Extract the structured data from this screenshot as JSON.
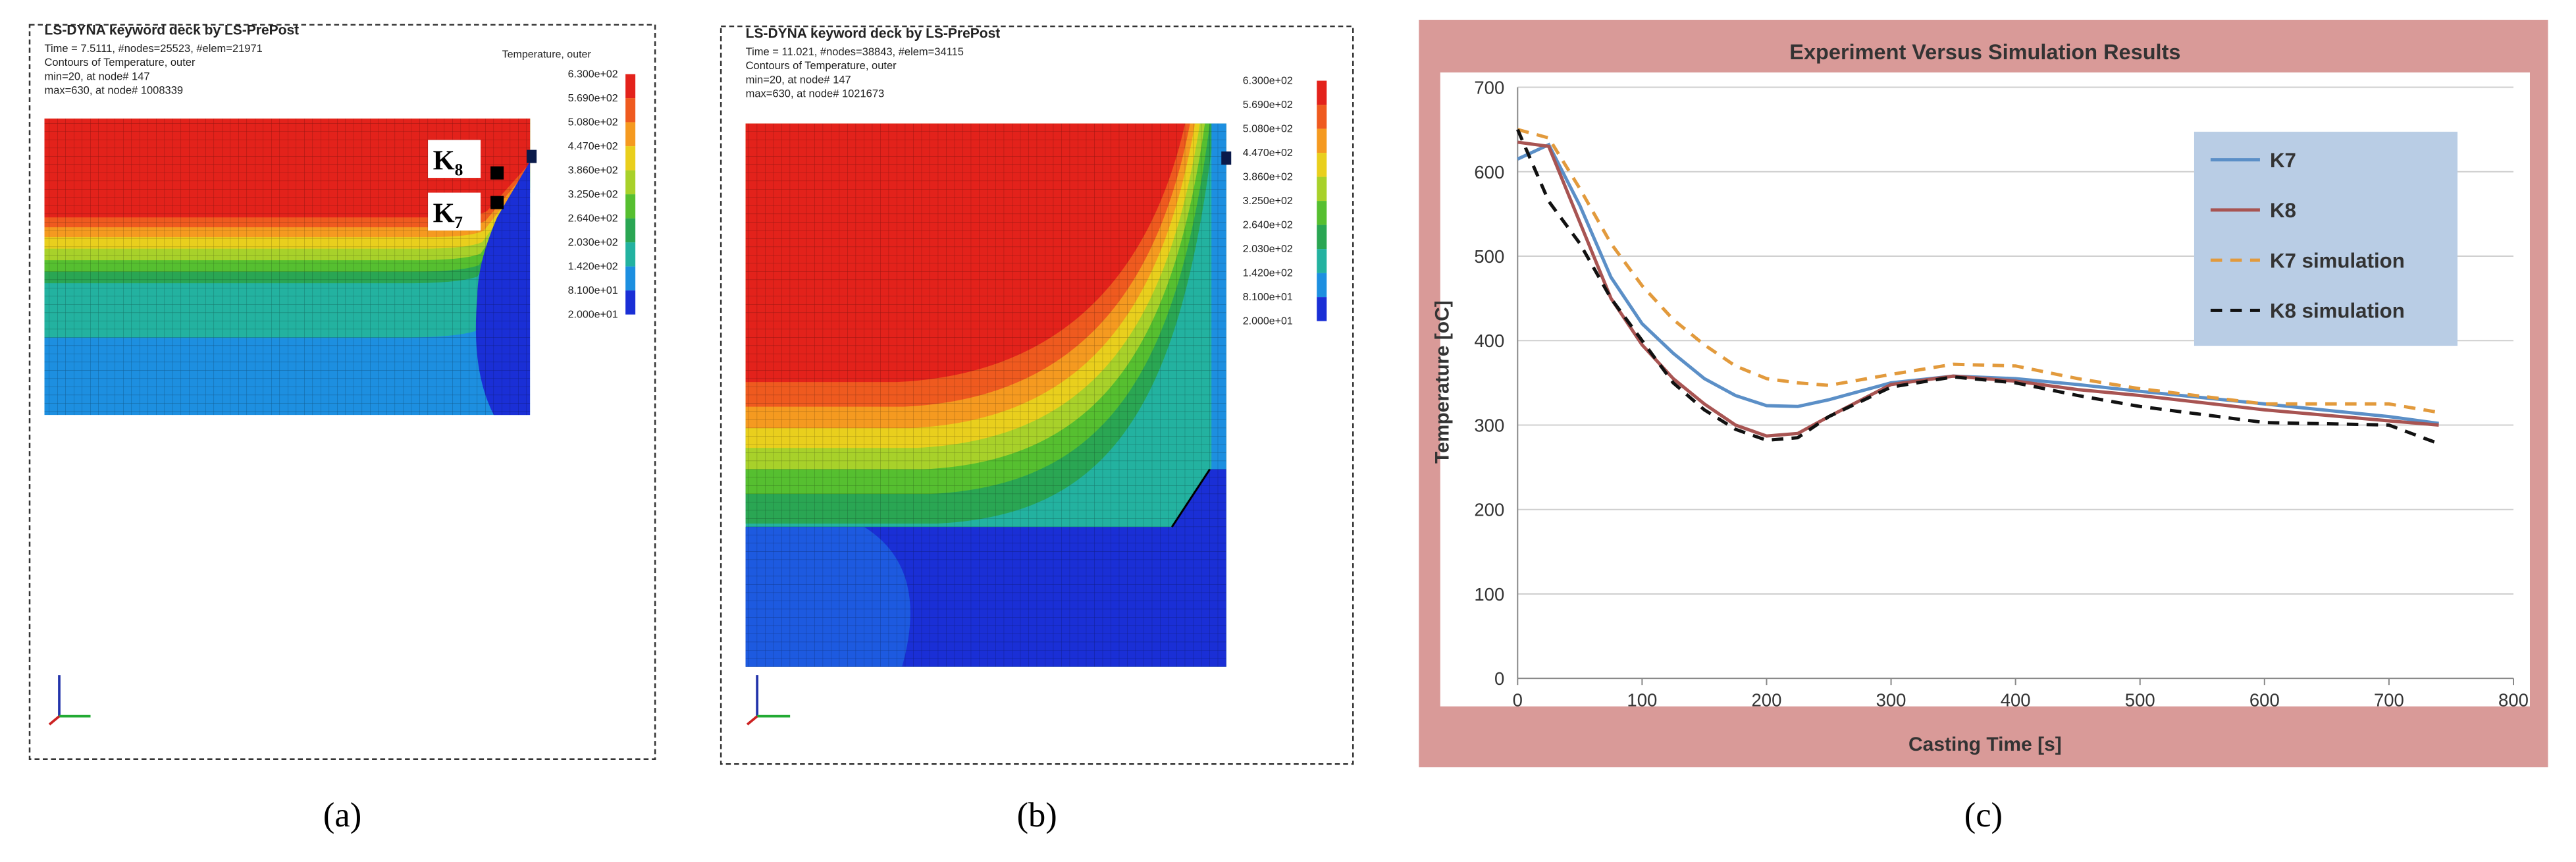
{
  "chart_data": {
    "type": "line",
    "title": "Experiment Versus Simulation Results",
    "xlabel": "Casting Time [s]",
    "ylabel": "Temperature [oC]",
    "x": [
      0,
      25,
      50,
      75,
      100,
      125,
      150,
      175,
      200,
      225,
      250,
      300,
      350,
      400,
      450,
      500,
      600,
      700,
      740
    ],
    "series": [
      {
        "name": "K7",
        "color": "#5b8fc7",
        "style": "solid",
        "values": [
          615,
          632,
          560,
          475,
          420,
          385,
          355,
          335,
          323,
          322,
          330,
          350,
          358,
          355,
          348,
          340,
          325,
          310,
          302
        ]
      },
      {
        "name": "K8",
        "color": "#a85452",
        "style": "solid",
        "values": [
          635,
          630,
          540,
          450,
          395,
          355,
          325,
          300,
          287,
          290,
          310,
          348,
          358,
          352,
          342,
          335,
          318,
          305,
          300
        ]
      },
      {
        "name": "K7 simulation",
        "color": "#e29a3c",
        "style": "dashed",
        "values": [
          650,
          640,
          580,
          515,
          465,
          425,
          395,
          370,
          355,
          350,
          347,
          360,
          372,
          370,
          355,
          343,
          325,
          325,
          315
        ]
      },
      {
        "name": "K8 simulation",
        "color": "#111111",
        "style": "dashed",
        "values": [
          650,
          565,
          515,
          450,
          400,
          350,
          318,
          295,
          282,
          285,
          310,
          345,
          357,
          350,
          335,
          322,
          303,
          300,
          278
        ]
      }
    ],
    "xlim": [
      0,
      800
    ],
    "xticks": [
      0,
      100,
      200,
      300,
      400,
      500,
      600,
      700,
      800
    ],
    "ylim": [
      0,
      700
    ],
    "yticks": [
      0,
      100,
      200,
      300,
      400,
      500,
      600,
      700
    ],
    "grid": true,
    "legend": "upper right"
  },
  "contour_colors": [
    "#e3221b",
    "#ef5a1f",
    "#f59a20",
    "#e9cf1d",
    "#a8d12a",
    "#56bf30",
    "#2aa653",
    "#23b2a0",
    "#1d8fe0",
    "#1a2fd6"
  ],
  "simulation_panels": [
    {
      "header": [
        "LS-DYNA keyword deck by LS-PrePost",
        "Time =     7.5111, #nodes=25523, #elem=21971",
        "Contours of Temperature, outer",
        " min=20, at node# 147",
        " max=630, at node# 1008339"
      ],
      "legend_title": "Temperature, outer",
      "legend_labels": [
        "6.300e+02",
        "5.690e+02",
        "5.080e+02",
        "4.470e+02",
        "3.860e+02",
        "3.250e+02",
        "2.640e+02",
        "2.030e+02",
        "1.420e+02",
        "8.100e+01",
        "2.000e+01"
      ],
      "point_labels": [
        "K₈",
        "K₇"
      ]
    },
    {
      "header": [
        "LS-DYNA keyword deck by LS-PrePost",
        "Time =     11.021, #nodes=38843, #elem=34115",
        "Contours of Temperature, outer",
        " min=20, at node# 147",
        " max=630, at node# 1021673"
      ],
      "legend_labels": [
        "6.300e+02",
        "5.690e+02",
        "5.080e+02",
        "4.470e+02",
        "3.860e+02",
        "3.250e+02",
        "2.640e+02",
        "2.030e+02",
        "1.420e+02",
        "8.100e+01",
        "2.000e+01"
      ]
    }
  ],
  "captions": [
    "(a)",
    "(b)",
    "(c)"
  ]
}
